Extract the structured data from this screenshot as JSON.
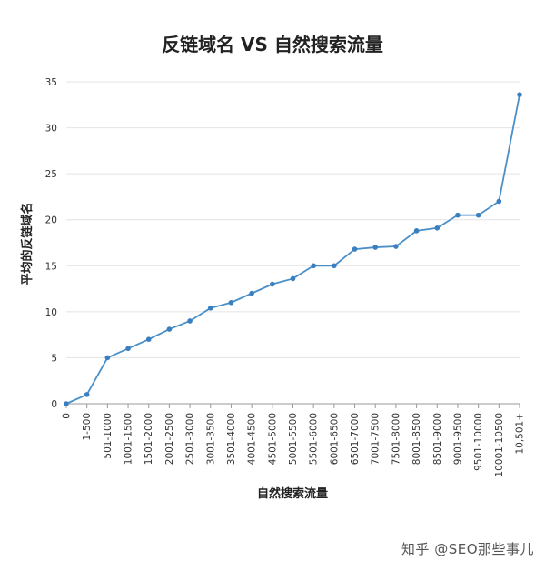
{
  "chart_data": {
    "type": "line",
    "title": "反链域名 VS 自然搜索流量",
    "xlabel": "自然搜索流量",
    "ylabel": "平均的反链域名",
    "categories": [
      "0",
      "1-500",
      "501-1000",
      "1001-1500",
      "1501-2000",
      "2001-2500",
      "2501-3000",
      "3001-3500",
      "3501-4000",
      "4001-4500",
      "4501-5000",
      "5001-5500",
      "5501-6000",
      "6001-6500",
      "6501-7000",
      "7001-7500",
      "7501-8000",
      "8001-8500",
      "8501-9000",
      "9001-9500",
      "9501-10000",
      "10001-10500",
      "10,501+"
    ],
    "series": [
      {
        "values": [
          0,
          1,
          5,
          6,
          7,
          8.1,
          9,
          10.4,
          11,
          12,
          13,
          13.6,
          15,
          15,
          16.8,
          17,
          17.1,
          18.8,
          19.1,
          20.5,
          20.5,
          22,
          33.6
        ]
      }
    ],
    "ylim": [
      0,
      35
    ],
    "yticks": [
      0,
      5,
      10,
      15,
      20,
      25,
      30,
      35
    ],
    "grid": true,
    "legend": "none",
    "colors": {
      "line": "#4a8fc8",
      "point": "#3a7fbf",
      "grid": "#e4e4e4"
    }
  },
  "watermark": "知乎 @SEO那些事儿"
}
